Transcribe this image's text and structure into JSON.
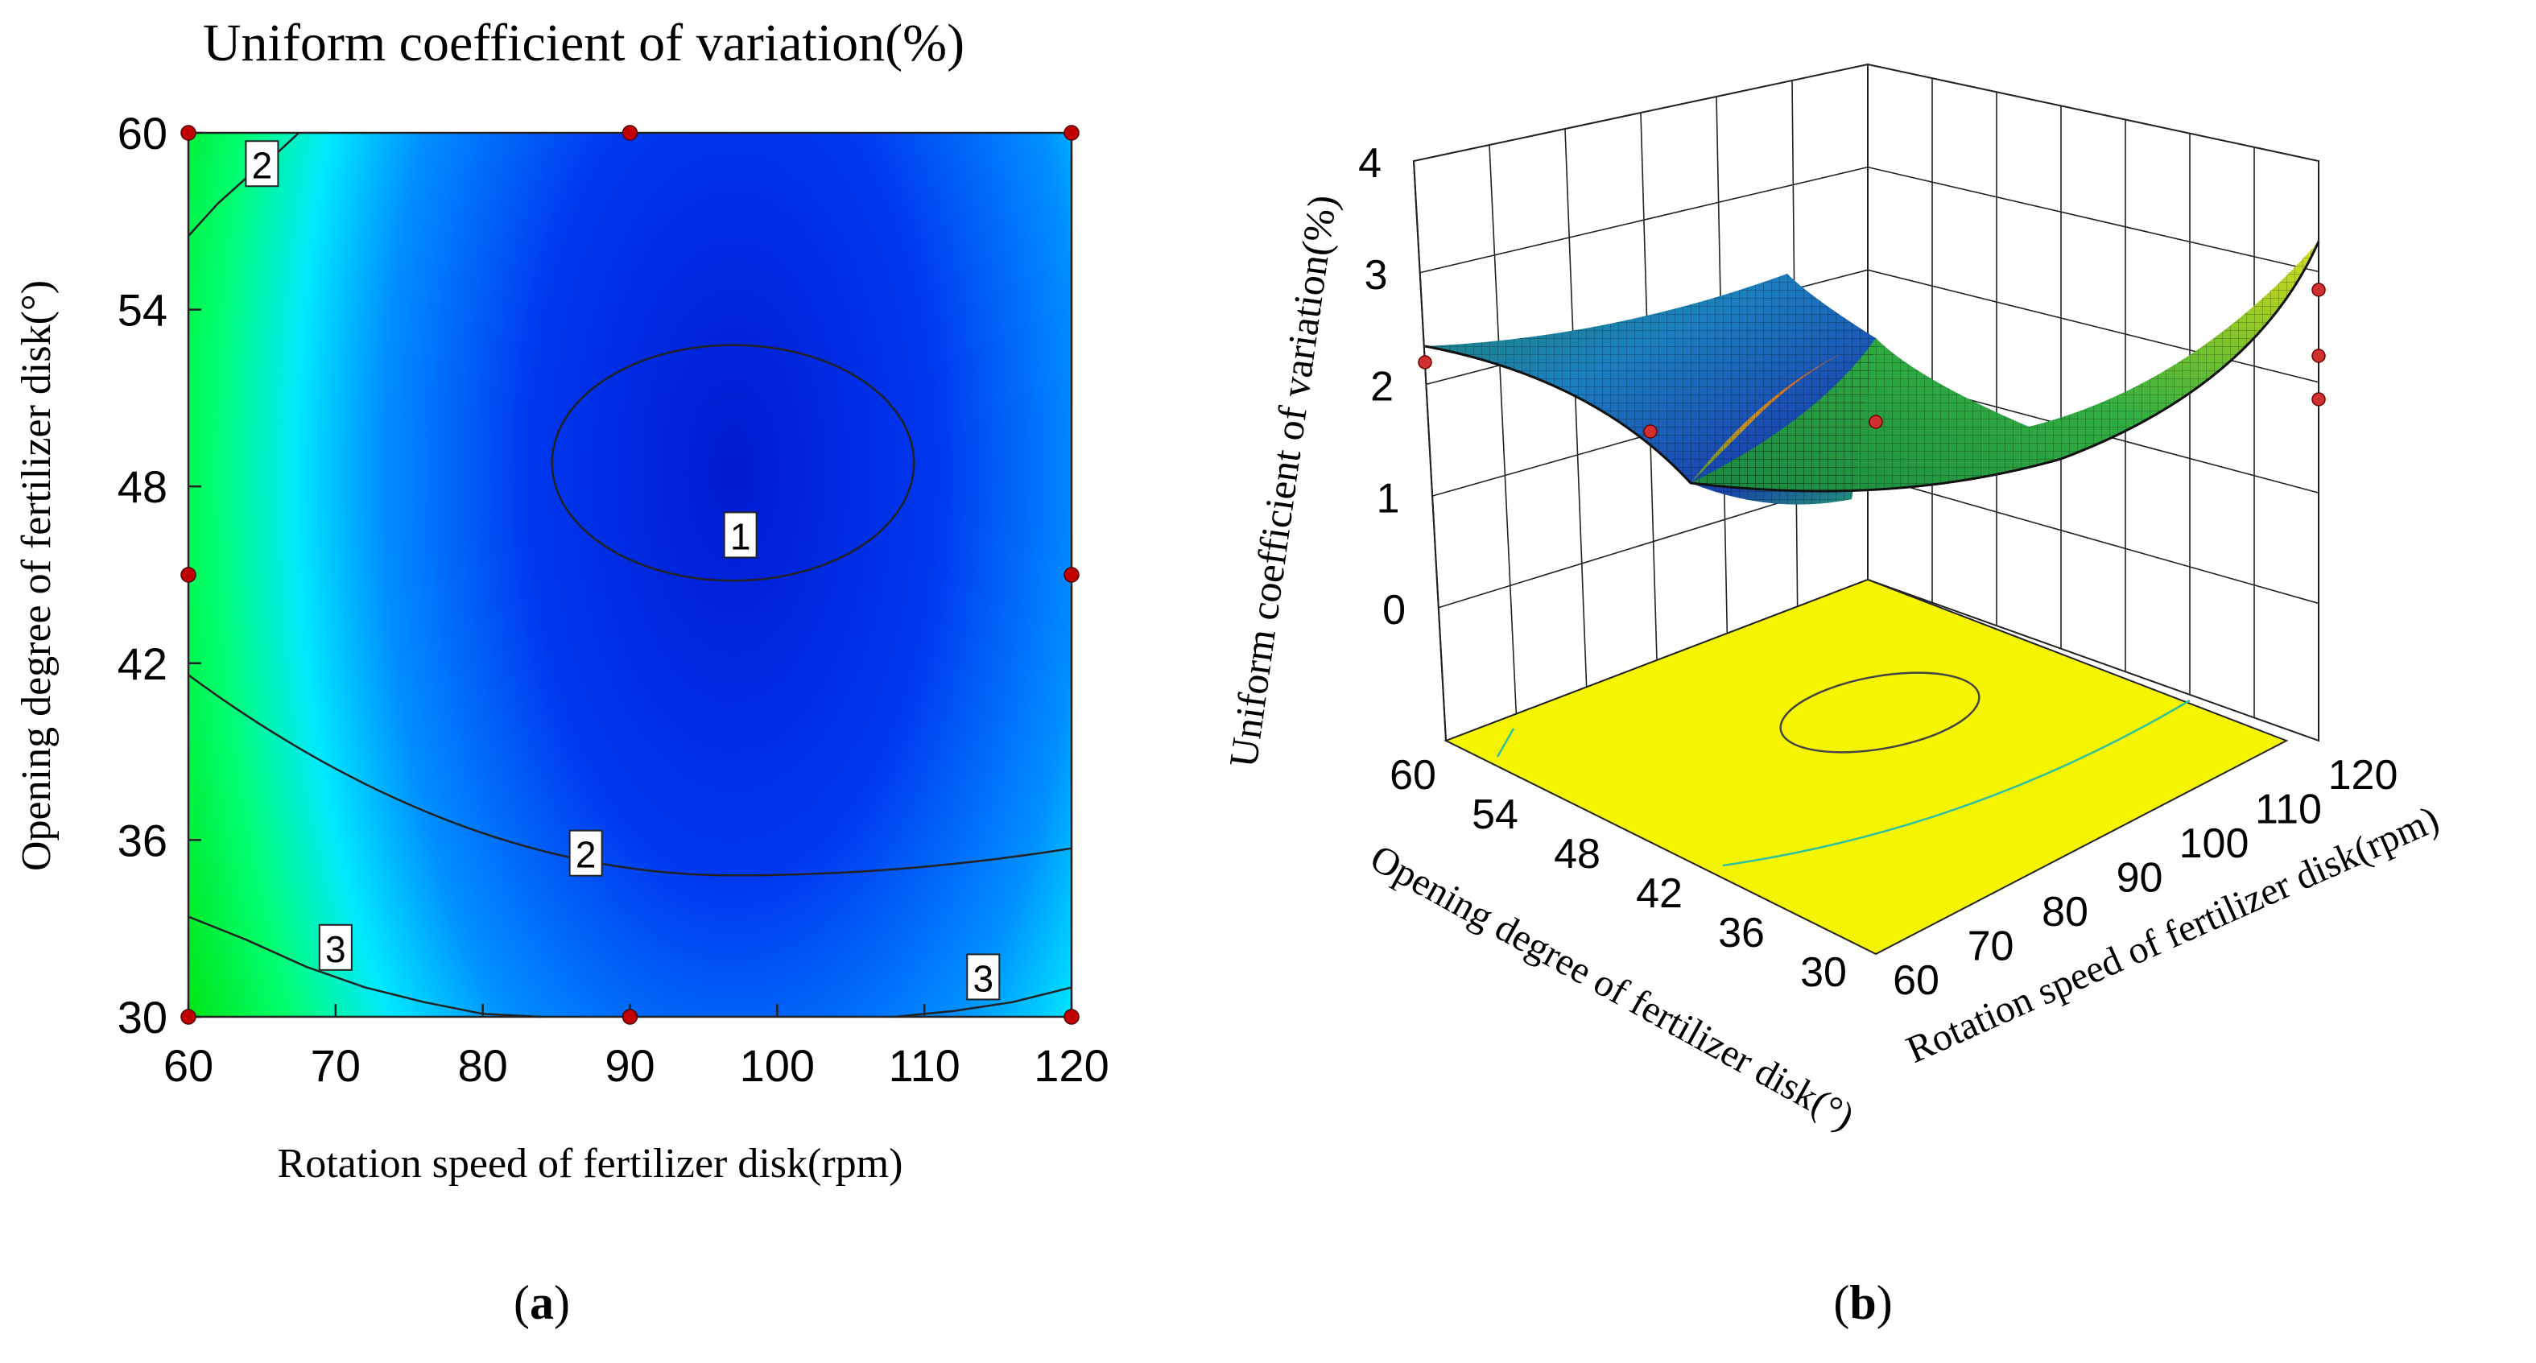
{
  "chart_data": [
    {
      "type": "contour",
      "panel_label": "a",
      "title": "Uniform coefficient of variation(%)",
      "xlabel": "Rotation speed of fertilizer disk(rpm)",
      "ylabel": "Opening degree of fertilizer disk(°)",
      "xlim": [
        60,
        120
      ],
      "ylim": [
        30,
        60
      ],
      "xticks": [
        "60",
        "70",
        "80",
        "90",
        "100",
        "110",
        "120"
      ],
      "yticks": [
        "30",
        "36",
        "42",
        "48",
        "54",
        "60"
      ],
      "contour_levels": [
        "1",
        "2",
        "3"
      ],
      "contour_label_text": [
        "2",
        "1",
        "2",
        "3",
        "3"
      ],
      "design_points": [
        {
          "x": 60,
          "y": 30
        },
        {
          "x": 90,
          "y": 30
        },
        {
          "x": 120,
          "y": 30
        },
        {
          "x": 60,
          "y": 45
        },
        {
          "x": 120,
          "y": 45
        },
        {
          "x": 60,
          "y": 60
        },
        {
          "x": 90,
          "y": 60
        },
        {
          "x": 120,
          "y": 60
        }
      ],
      "point_color": "#c00000"
    },
    {
      "type": "surface",
      "panel_label": "b",
      "zlabel": "Uniform coefficient of variation(%)",
      "xlabel": "Rotation speed of fertilizer disk(rpm)",
      "ylabel": "Opening degree of fertilizer disk(°)",
      "xticks": [
        "60",
        "70",
        "80",
        "90",
        "100",
        "110",
        "120"
      ],
      "yticks": [
        "30",
        "36",
        "42",
        "48",
        "54",
        "60"
      ],
      "zticks": [
        "0",
        "1",
        "2",
        "3",
        "4"
      ],
      "zlim": [
        0,
        4
      ],
      "floor_color": "#f5f500",
      "design_points": [
        {
          "x": 60,
          "y": 60,
          "z": 2.0
        },
        {
          "x": 60,
          "y": 45,
          "z": 2.1
        },
        {
          "x": 60,
          "y": 30,
          "z": 2.9
        },
        {
          "x": 120,
          "y": 30,
          "z": 3.0
        },
        {
          "x": 120,
          "y": 45,
          "z": 1.7
        },
        {
          "x": 120,
          "y": 60,
          "z": 0.6
        }
      ]
    }
  ],
  "labels": {
    "a": "a",
    "b": "b"
  }
}
